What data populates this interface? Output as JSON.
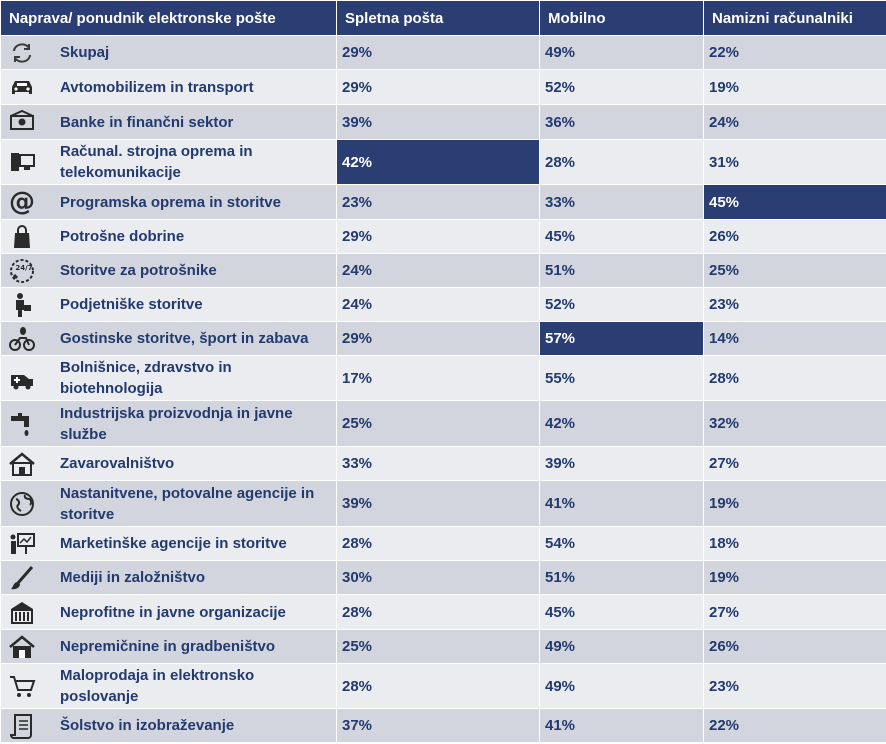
{
  "chart_data": {
    "type": "table",
    "columns": [
      "Naprava/ ponudnik elektronske pošte",
      "Spletna pošta",
      "Mobilno",
      "Namizni računalniki"
    ],
    "rows": [
      {
        "sector": "Skupaj",
        "icon": "refresh-icon",
        "values": [
          "29%",
          "49%",
          "22%"
        ],
        "highlight": -1
      },
      {
        "sector": "Avtomobilizem in transport",
        "icon": "car-icon",
        "values": [
          "29%",
          "52%",
          "19%"
        ],
        "highlight": -1
      },
      {
        "sector": "Banke in finančni sektor",
        "icon": "bank-icon",
        "values": [
          "39%",
          "36%",
          "24%"
        ],
        "highlight": -1
      },
      {
        "sector": "Računal. strojna oprema in telekomunikacije",
        "icon": "computer-icon",
        "values": [
          "42%",
          "28%",
          "31%"
        ],
        "highlight": 0
      },
      {
        "sector": "Programska oprema in storitve",
        "icon": "at-icon",
        "values": [
          "23%",
          "33%",
          "45%"
        ],
        "highlight": 2
      },
      {
        "sector": "Potrošne dobrine",
        "icon": "shopping-bag-icon",
        "values": [
          "29%",
          "45%",
          "26%"
        ],
        "highlight": -1
      },
      {
        "sector": "Storitve za potrošnike",
        "icon": "support-247-icon",
        "values": [
          "24%",
          "51%",
          "25%"
        ],
        "highlight": -1
      },
      {
        "sector": "Podjetniške storitve",
        "icon": "businessman-icon",
        "values": [
          "24%",
          "52%",
          "23%"
        ],
        "highlight": -1
      },
      {
        "sector": "Gostinske storitve, šport in zabava",
        "icon": "bicycle-icon",
        "values": [
          "29%",
          "57%",
          "14%"
        ],
        "highlight": 1
      },
      {
        "sector": "Bolnišnice, zdravstvo in biotehnologija",
        "icon": "ambulance-icon",
        "values": [
          "17%",
          "55%",
          "28%"
        ],
        "highlight": -1
      },
      {
        "sector": "Industrijska proizvodnja in javne službe",
        "icon": "faucet-icon",
        "values": [
          "25%",
          "42%",
          "32%"
        ],
        "highlight": -1
      },
      {
        "sector": "Zavarovalništvo",
        "icon": "house-shield-icon",
        "values": [
          "33%",
          "39%",
          "27%"
        ],
        "highlight": -1
      },
      {
        "sector": "Nastanitvene, potovalne agencije in storitve",
        "icon": "globe-icon",
        "values": [
          "39%",
          "41%",
          "19%"
        ],
        "highlight": -1
      },
      {
        "sector": "Marketinške agencije in storitve",
        "icon": "presentation-icon",
        "values": [
          "28%",
          "54%",
          "18%"
        ],
        "highlight": -1
      },
      {
        "sector": "Mediji in založništvo",
        "icon": "brush-icon",
        "values": [
          "30%",
          "51%",
          "19%"
        ],
        "highlight": -1
      },
      {
        "sector": "Neprofitne in javne organizacije",
        "icon": "public-building-icon",
        "values": [
          "28%",
          "45%",
          "27%"
        ],
        "highlight": -1
      },
      {
        "sector": "Nepremičnine in gradbeništvo",
        "icon": "house-icon",
        "values": [
          "25%",
          "49%",
          "26%"
        ],
        "highlight": -1
      },
      {
        "sector": "Maloprodaja in elektronsko poslovanje",
        "icon": "cart-icon",
        "values": [
          "28%",
          "49%",
          "23%"
        ],
        "highlight": -1
      },
      {
        "sector": "Šolstvo in izobraževanje",
        "icon": "scroll-icon",
        "values": [
          "37%",
          "41%",
          "22%"
        ],
        "highlight": -1
      }
    ],
    "colors": {
      "header": "#2a3e73",
      "highlight": "#2a3e73",
      "row_odd": "#d3d5de",
      "row_even": "#ebecf0",
      "text": "#223a6e"
    }
  }
}
